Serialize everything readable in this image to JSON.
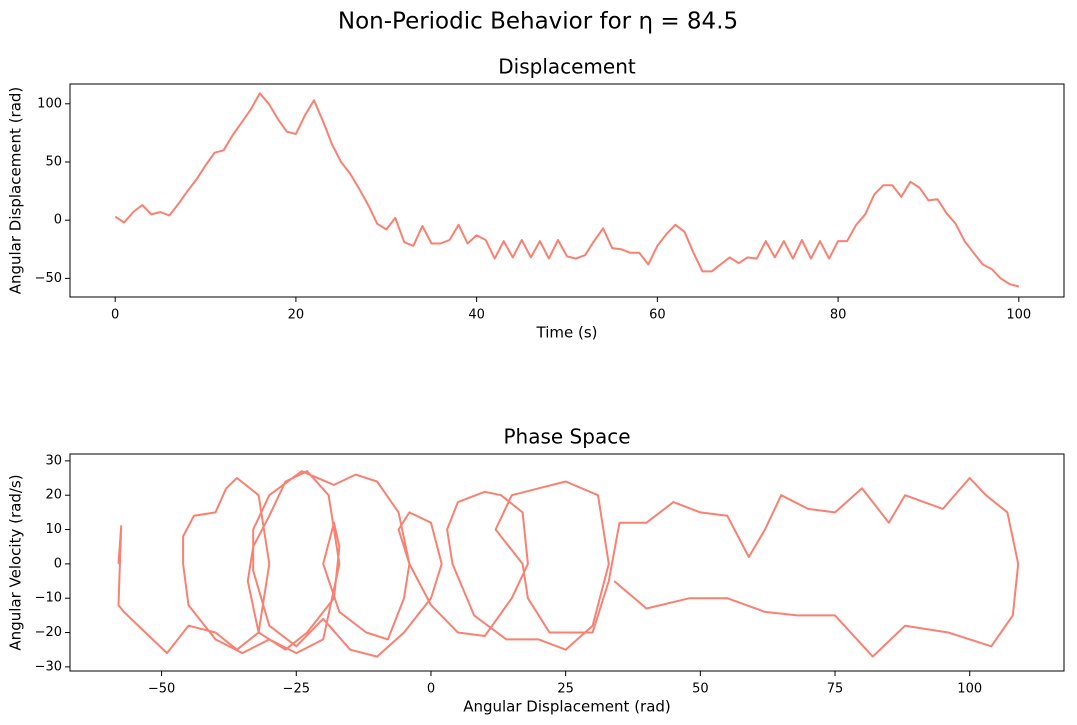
{
  "title": "Non-Periodic Behavior for η = 84.5",
  "chart_data": [
    {
      "type": "line",
      "title": "Displacement",
      "x_label": "Time (s)",
      "y_label": "Angular Displacement (rad)",
      "color": "#fa8072",
      "xlim": [
        -5,
        105
      ],
      "ylim": [
        -66,
        117
      ],
      "xticks": [
        0,
        20,
        40,
        60,
        80,
        100
      ],
      "yticks": [
        {
          "value": -50,
          "label": "−50"
        },
        0,
        50,
        100
      ],
      "x": [
        0,
        1,
        2,
        3,
        4,
        5,
        6,
        7,
        8,
        9,
        10,
        11,
        12,
        13,
        14,
        15,
        16,
        17,
        18,
        19,
        20,
        21,
        22,
        23,
        24,
        25,
        26,
        27,
        28,
        29,
        30,
        31,
        32,
        33,
        34,
        35,
        36,
        37,
        38,
        39,
        40,
        41,
        42,
        43,
        44,
        45,
        46,
        47,
        48,
        49,
        50,
        51,
        52,
        53,
        54,
        55,
        56,
        57,
        58,
        59,
        60,
        61,
        62,
        63,
        64,
        65,
        66,
        67,
        68,
        69,
        70,
        71,
        72,
        73,
        74,
        75,
        76,
        77,
        78,
        79,
        80,
        81,
        82,
        83,
        84,
        85,
        86,
        87,
        88,
        89,
        90,
        91,
        92,
        93,
        94,
        95,
        96,
        97,
        98,
        99,
        100
      ],
      "values": [
        3,
        -2,
        7,
        13,
        5,
        7,
        4,
        14,
        25,
        35,
        47,
        58,
        60,
        73,
        84,
        95,
        109,
        100,
        87,
        76,
        74,
        90,
        103,
        85,
        65,
        50,
        40,
        27,
        13,
        -3,
        -8,
        2,
        -19,
        -22,
        -5,
        -20,
        -20,
        -17,
        -4,
        -20,
        -13,
        -17,
        -33,
        -18,
        -32,
        -17,
        -32,
        -18,
        -33,
        -17,
        -31,
        -33,
        -30,
        -18,
        -7,
        -24,
        -25,
        -28,
        -28,
        -38,
        -22,
        -12,
        -4,
        -10,
        -28,
        -44,
        -44,
        -38,
        -32,
        -37,
        -32,
        -33,
        -18,
        -32,
        -18,
        -33,
        -17,
        -33,
        -18,
        -33,
        -18,
        -18,
        -4,
        5,
        22,
        30,
        30,
        20,
        33,
        28,
        17,
        18,
        6,
        -3,
        -18,
        -28,
        -38,
        -42,
        -50,
        -55,
        -57
      ]
    },
    {
      "type": "line",
      "title": "Phase Space",
      "x_label": "Angular Displacement (rad)",
      "y_label": "Angular Velocity (rad/s)",
      "color": "#fa8072",
      "xlim": [
        -67,
        117.5
      ],
      "ylim": [
        -31.2,
        32
      ],
      "xticks": [
        {
          "value": -50,
          "label": "−50"
        },
        {
          "value": -25,
          "label": "−25"
        },
        0,
        25,
        50,
        75,
        100
      ],
      "yticks": [
        {
          "value": -30,
          "label": "−30"
        },
        {
          "value": -20,
          "label": "−20"
        },
        {
          "value": -10,
          "label": "−10"
        },
        0,
        10,
        20,
        30
      ],
      "x": [
        -58,
        -57.5,
        -58,
        -57,
        -53,
        -49,
        -45,
        -40,
        -36,
        -32,
        -30,
        -32,
        -36,
        -38,
        -40,
        -44,
        -46,
        -46,
        -45,
        -40,
        -35,
        -30,
        -25,
        -20,
        -17,
        -19,
        -23,
        -27,
        -30,
        -33,
        -34,
        -32,
        -27,
        -23,
        -18,
        -17,
        -18,
        -20,
        -17,
        -12,
        -8,
        -5,
        -4,
        -6,
        -10,
        -14,
        -18,
        -24,
        -30,
        -33,
        -33,
        -30,
        -25,
        -20,
        -15,
        -10,
        -5,
        0,
        2,
        0,
        -4,
        -6,
        -4,
        0,
        5,
        10,
        15,
        18,
        17,
        13,
        10,
        5,
        3,
        4,
        8,
        14,
        20,
        25,
        30,
        33,
        31,
        25,
        20,
        15,
        12,
        17,
        18,
        22,
        30,
        33,
        35,
        40,
        45,
        50,
        55,
        59,
        62,
        65,
        70,
        75,
        80,
        85,
        88,
        95,
        100,
        103,
        107,
        109,
        108,
        104,
        96,
        88,
        82,
        75,
        68,
        62,
        55,
        48,
        40,
        34
      ],
      "values": [
        0,
        11,
        -12,
        -14,
        -20,
        -26,
        -18,
        -20,
        -25,
        -20,
        0,
        20,
        25,
        22,
        15,
        14,
        8,
        0,
        -12,
        -22,
        -26,
        -22,
        -26,
        -22,
        0,
        20,
        27,
        24,
        14,
        5,
        -5,
        -20,
        -25,
        -20,
        -10,
        5,
        12,
        0,
        -14,
        -20,
        -22,
        -10,
        0,
        15,
        24,
        26,
        23,
        27,
        20,
        10,
        -2,
        -18,
        -24,
        -16,
        -25,
        -27,
        -20,
        -10,
        0,
        12,
        15,
        10,
        0,
        -12,
        -20,
        -21,
        -10,
        0,
        15,
        20,
        21,
        18,
        10,
        0,
        -15,
        -22,
        -22,
        -25,
        -18,
        0,
        20,
        24,
        22,
        20,
        10,
        0,
        -10,
        -20,
        -20,
        -5,
        12,
        12,
        18,
        15,
        14,
        2,
        10,
        20,
        16,
        15,
        22,
        12,
        20,
        16,
        25,
        20,
        15,
        0,
        -15,
        -24,
        -20,
        -18,
        -27,
        -15,
        -15,
        -14,
        -10,
        -10,
        -13,
        -5
      ]
    }
  ]
}
